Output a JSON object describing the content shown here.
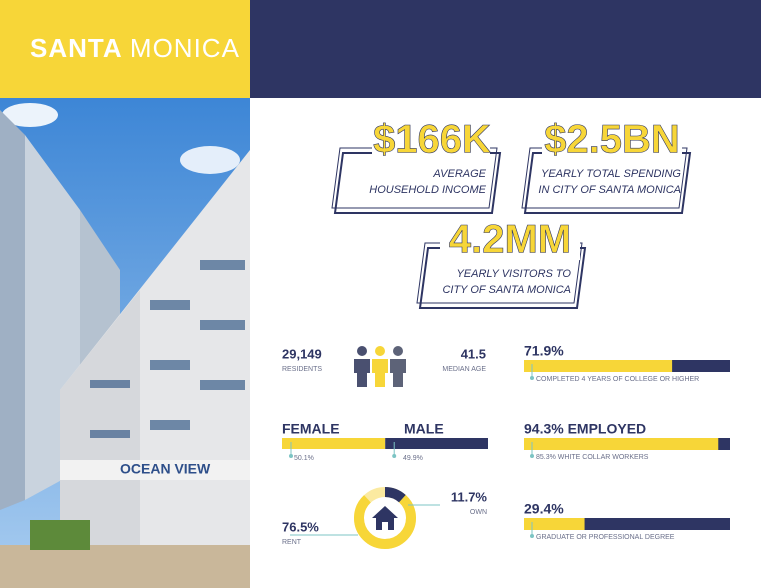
{
  "header": {
    "title_bold": "SANTA",
    "title_light": "MONICA"
  },
  "highlights": [
    {
      "value": "$166K",
      "lines": [
        "AVERAGE",
        "HOUSEHOLD INCOME"
      ]
    },
    {
      "value": "$2.5BN",
      "lines": [
        "YEARLY TOTAL SPENDING",
        "IN CITY OF SANTA MONICA"
      ]
    },
    {
      "value": "4.2MM",
      "lines": [
        "YEARLY VISITORS TO",
        "CITY OF SANTA MONICA"
      ]
    }
  ],
  "residents": {
    "value": "29,149",
    "label": "RESIDENTS"
  },
  "median_age": {
    "value": "41.5",
    "label": "MEDIAN AGE"
  },
  "gender": {
    "female": {
      "name": "FEMALE",
      "percent": {
        "value": 50.1,
        "label": "50.1%"
      }
    },
    "male": {
      "name": "MALE",
      "percent": {
        "value": 49.9,
        "label": "49.9%"
      }
    }
  },
  "housing": {
    "own": {
      "percent": {
        "value": 11.7,
        "label": "11.7%"
      },
      "label": "OWN"
    },
    "rent": {
      "percent": {
        "value": 76.5,
        "label": "76.5%"
      },
      "label": "RENT"
    }
  },
  "bars": [
    {
      "percent": {
        "value": 71.9,
        "label": "71.9%"
      },
      "caption": "COMPLETED 4 YEARS OF COLLEGE OR HIGHER"
    },
    {
      "percent": {
        "value": 94.3,
        "label": "94.3% EMPLOYED"
      },
      "caption": "85.3% WHITE COLLAR WORKERS"
    },
    {
      "percent": {
        "value": 29.4,
        "label": "29.4%"
      },
      "caption": "GRADUATE OR PROFESSIONAL DEGREE"
    }
  ]
}
